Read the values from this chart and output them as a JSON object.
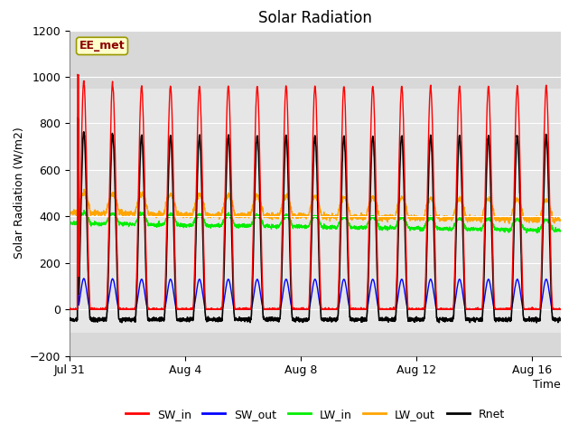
{
  "title": "Solar Radiation",
  "ylabel": "Solar Radiation (W/m2)",
  "xlabel": "Time",
  "ylim": [
    -200,
    1200
  ],
  "yticks": [
    -200,
    0,
    200,
    400,
    600,
    800,
    1000,
    1200
  ],
  "xtick_labels": [
    "Jul 31",
    "Aug 4",
    "Aug 8",
    "Aug 12",
    "Aug 16"
  ],
  "xtick_positions": [
    0,
    4,
    8,
    12,
    16
  ],
  "n_days": 17,
  "background_color": "#ffffff",
  "plot_bg_color": "#d8d8d8",
  "series_colors": {
    "SW_in": "#ff0000",
    "SW_out": "#0000ff",
    "LW_in": "#00ee00",
    "LW_out": "#ffa500",
    "Rnet": "#000000"
  },
  "station_label": "EE_met",
  "station_label_color": "#8b0000",
  "station_box_color": "#ffffcc",
  "figsize": [
    6.4,
    4.8
  ],
  "dpi": 100
}
